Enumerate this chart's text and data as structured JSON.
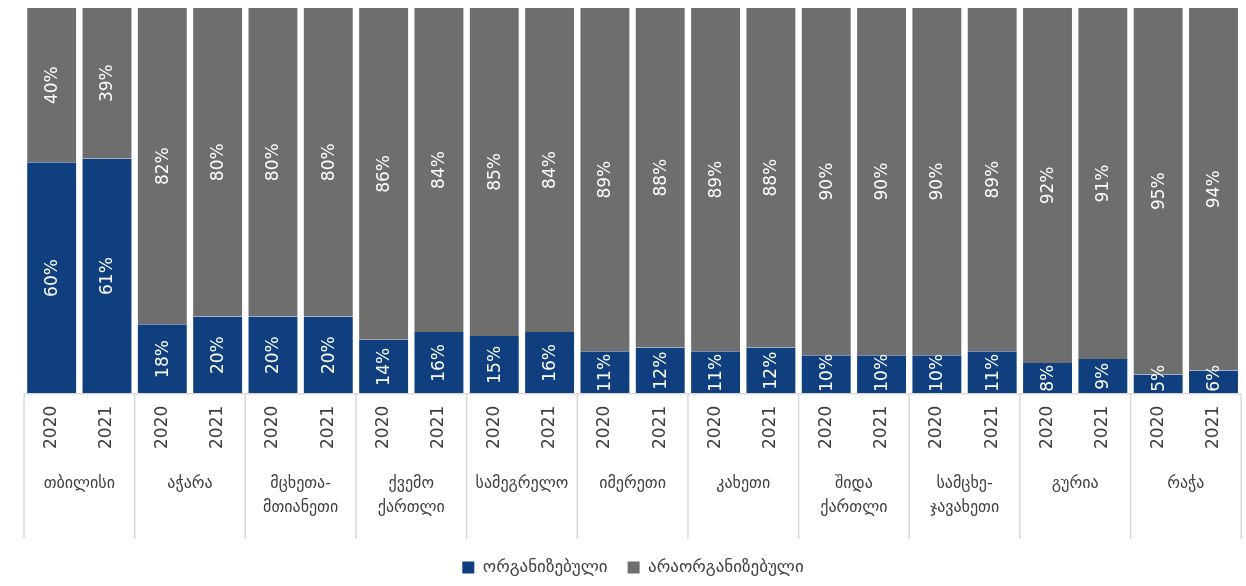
{
  "chart_data": {
    "type": "bar",
    "stacked": true,
    "legend": "bottom",
    "grid": false,
    "tick_labels": "x",
    "categories": [
      "2020",
      "2021",
      "2020",
      "2021",
      "2020",
      "2021",
      "2020",
      "2021",
      "2020",
      "2021",
      "2020",
      "2021",
      "2020",
      "2021",
      "2020",
      "2021",
      "2020",
      "2021",
      "2020",
      "2021",
      "2020",
      "2021"
    ],
    "annotations": [
      "თბილისი",
      "აჭარა",
      "მცხეთა-მთიანეთი",
      "ქვემო ქართლი",
      "სამეგრელო",
      "იმერეთი",
      "კახეთი",
      "შიდა ქართლი",
      "სამცხე-ჯავახეთი",
      "გურია",
      "რაჭა"
    ],
    "series": [
      {
        "name": "ორგანიზებული",
        "color": "#0f3f7f",
        "values": [
          60,
          61,
          18,
          20,
          20,
          20,
          14,
          16,
          15,
          16,
          11,
          12,
          11,
          12,
          10,
          10,
          10,
          11,
          8,
          9,
          5,
          6
        ],
        "value_labels": [
          "60%",
          "61%",
          "18%",
          "20%",
          "20%",
          "20%",
          "14%",
          "16%",
          "15%",
          "16%",
          "11%",
          "12%",
          "11%",
          "12%",
          "10%",
          "10%",
          "10%",
          "11%",
          "8%",
          "9%",
          "5%",
          "6%"
        ]
      },
      {
        "name": "არაორგანიზებული",
        "color": "#6e6e6e",
        "values": [
          40,
          39,
          82,
          80,
          80,
          80,
          86,
          84,
          85,
          84,
          89,
          88,
          89,
          88,
          90,
          90,
          90,
          89,
          92,
          91,
          95,
          94
        ],
        "value_labels": [
          "40%",
          "39%",
          "82%",
          "80%",
          "80%",
          "80%",
          "86%",
          "84%",
          "85%",
          "84%",
          "89%",
          "88%",
          "89%",
          "88%",
          "90%",
          "90%",
          "90%",
          "89%",
          "92%",
          "91%",
          "95%",
          "94%"
        ]
      }
    ]
  }
}
